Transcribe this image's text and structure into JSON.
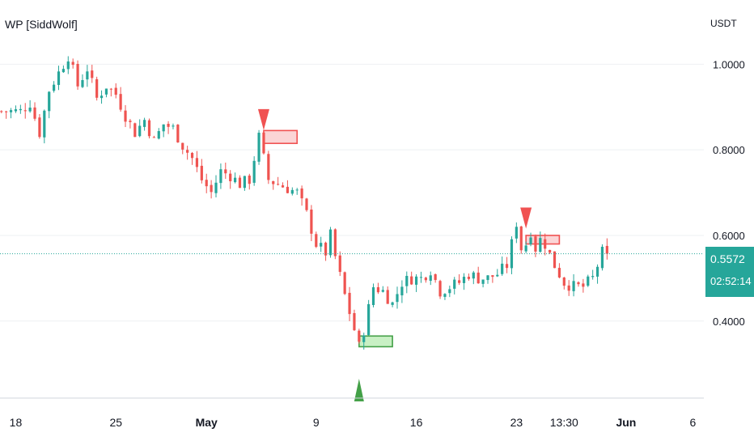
{
  "indicator_title": "WP [SiddWolf]",
  "chart_data": {
    "type": "candlestick",
    "y_unit": "USDT",
    "y_ticks": [
      "1.0000",
      "0.8000",
      "0.6000",
      "0.4000"
    ],
    "y_tick_values": [
      1.0,
      0.8,
      0.6,
      0.4
    ],
    "ylim": [
      0.22,
      1.15
    ],
    "x_ticks": [
      {
        "label": "18",
        "bar": 3,
        "bold": false
      },
      {
        "label": "25",
        "bar": 24,
        "bold": false
      },
      {
        "label": "May",
        "bar": 43,
        "bold": true
      },
      {
        "label": "9",
        "bar": 66,
        "bold": false
      },
      {
        "label": "16",
        "bar": 87,
        "bold": false
      },
      {
        "label": "23",
        "bar": 108,
        "bold": false
      },
      {
        "label": "13:30",
        "bar": 118,
        "bold": false
      },
      {
        "label": "Jun",
        "bar": 131,
        "bold": true
      },
      {
        "label": "6",
        "bar": 145,
        "bold": false
      }
    ],
    "xlim_bars": [
      -0.3,
      147.3
    ],
    "close_path": [
      [
        0,
        0.89
      ],
      [
        4,
        0.89
      ],
      [
        6,
        0.91
      ],
      [
        8,
        0.84
      ],
      [
        10,
        0.94
      ],
      [
        12,
        0.98
      ],
      [
        14,
        1.02
      ],
      [
        16,
        0.95
      ],
      [
        18,
        0.99
      ],
      [
        20,
        0.92
      ],
      [
        22,
        0.95
      ],
      [
        24,
        0.93
      ],
      [
        26,
        0.88
      ],
      [
        28,
        0.84
      ],
      [
        30,
        0.87
      ],
      [
        32,
        0.82
      ],
      [
        34,
        0.86
      ],
      [
        36,
        0.85
      ],
      [
        38,
        0.81
      ],
      [
        40,
        0.78
      ],
      [
        42,
        0.73
      ],
      [
        44,
        0.7
      ],
      [
        46,
        0.75
      ],
      [
        48,
        0.74
      ],
      [
        50,
        0.72
      ],
      [
        52,
        0.73
      ],
      [
        54,
        0.83
      ],
      [
        56,
        0.73
      ],
      [
        58,
        0.72
      ],
      [
        60,
        0.71
      ],
      [
        62,
        0.7
      ],
      [
        64,
        0.65
      ],
      [
        66,
        0.58
      ],
      [
        68,
        0.56
      ],
      [
        69,
        0.6
      ],
      [
        70,
        0.55
      ],
      [
        72,
        0.46
      ],
      [
        74,
        0.38
      ],
      [
        75,
        0.34
      ],
      [
        76,
        0.38
      ],
      [
        78,
        0.48
      ],
      [
        80,
        0.47
      ],
      [
        82,
        0.44
      ],
      [
        84,
        0.49
      ],
      [
        86,
        0.5
      ],
      [
        88,
        0.5
      ],
      [
        90,
        0.52
      ],
      [
        92,
        0.47
      ],
      [
        94,
        0.48
      ],
      [
        96,
        0.49
      ],
      [
        98,
        0.51
      ],
      [
        100,
        0.5
      ],
      [
        102,
        0.5
      ],
      [
        104,
        0.51
      ],
      [
        106,
        0.53
      ],
      [
        108,
        0.63
      ],
      [
        109,
        0.57
      ],
      [
        110,
        0.58
      ],
      [
        111,
        0.61
      ],
      [
        112,
        0.57
      ],
      [
        113,
        0.59
      ],
      [
        114,
        0.58
      ],
      [
        116,
        0.53
      ],
      [
        118,
        0.49
      ],
      [
        120,
        0.48
      ],
      [
        122,
        0.48
      ],
      [
        124,
        0.5
      ],
      [
        125,
        0.53
      ],
      [
        126,
        0.56
      ],
      [
        127,
        0.557
      ]
    ],
    "last_price": 0.5572,
    "last_price_label": "0.5572",
    "countdown": "02:52:14",
    "annotations": [
      {
        "kind": "bearish-marker",
        "bar": 55,
        "price": 0.88
      },
      {
        "kind": "bearish-zone",
        "bar_start": 55,
        "bar_end": 62,
        "price_top": 0.845,
        "price_bottom": 0.815
      },
      {
        "kind": "bullish-marker",
        "bar": 75,
        "price": 0.25
      },
      {
        "kind": "bullish-zone",
        "bar_start": 75,
        "bar_end": 82,
        "price_top": 0.365,
        "price_bottom": 0.34
      },
      {
        "kind": "bearish-marker",
        "bar": 110,
        "price": 0.65
      },
      {
        "kind": "bearish-zone",
        "bar_start": 110,
        "bar_end": 117,
        "price_top": 0.6,
        "price_bottom": 0.58
      }
    ],
    "grid": true,
    "colors": {
      "up": "#26a69a",
      "down": "#ef5350",
      "bull_marker": "#43a047",
      "bear_marker": "#f05252",
      "price_line": "#26a69a",
      "grid": "#eef0f3"
    }
  }
}
